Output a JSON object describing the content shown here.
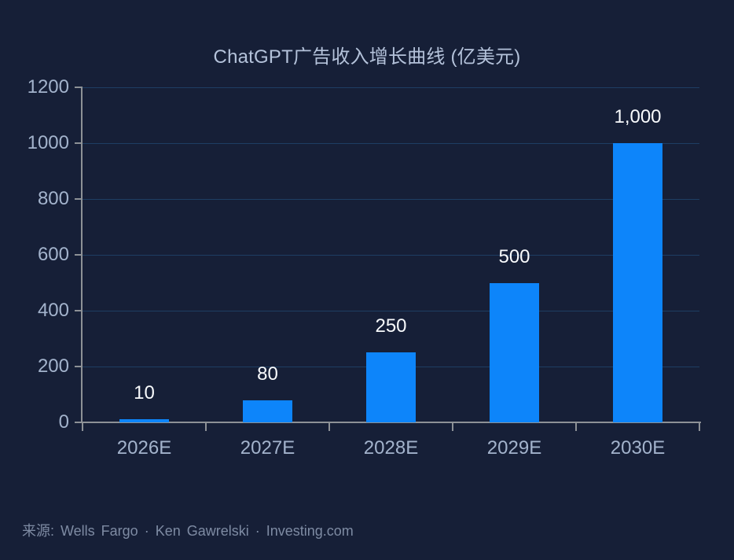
{
  "chart_data": {
    "type": "bar",
    "title": "ChatGPT广告收入增长曲线 (亿美元)",
    "categories": [
      "2026E",
      "2027E",
      "2028E",
      "2029E",
      "2030E"
    ],
    "values": [
      10,
      80,
      250,
      500,
      1000
    ],
    "value_labels": [
      "10",
      "80",
      "250",
      "500",
      "1,000"
    ],
    "xlabel": "",
    "ylabel": "",
    "ylim": [
      0,
      1200
    ],
    "yticks": [
      0,
      200,
      400,
      600,
      800,
      1000,
      1200
    ],
    "grid": "horizontal-gridlines-on",
    "legend": "none",
    "bar_color": "#0d85fa"
  },
  "footer": {
    "text": "来源: Wells Fargo · Ken Gawrelski · Investing.com"
  },
  "colors": {
    "background": "#161f37",
    "bar": "#0d85fa",
    "gridline": "#1e3e63",
    "axis": "#8d9196",
    "tick_label": "#a3b3cc",
    "title": "#b4c2da",
    "value_label": "#f8fafc",
    "footer": "#7e8ba3"
  }
}
